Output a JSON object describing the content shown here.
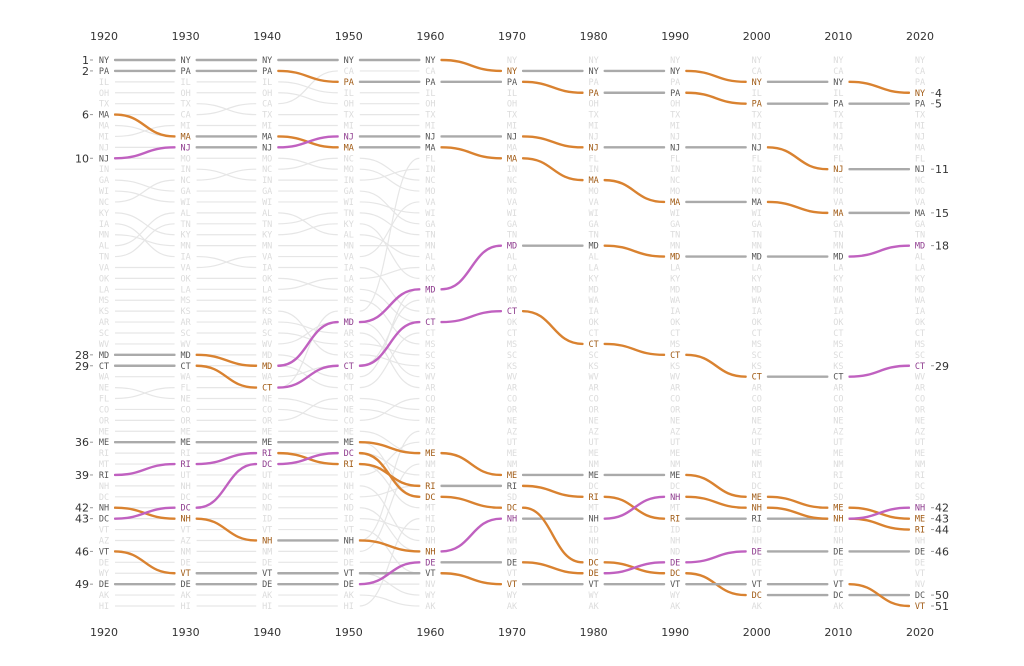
{
  "chart_data": {
    "type": "line",
    "title": "",
    "xlabel": "",
    "ylabel": "",
    "ylim": [
      1,
      51
    ],
    "x": [
      "1920",
      "1930",
      "1940",
      "1950",
      "1960",
      "1970",
      "1980",
      "1990",
      "2000",
      "2010",
      "2020"
    ],
    "colors": {
      "rise": "#c061c0",
      "fall": "#d98230",
      "flat": "#aaaaaa",
      "ghost": "#e6e6e6"
    },
    "series": [
      {
        "name": "NY",
        "values": [
          1,
          1,
          1,
          1,
          1,
          2,
          2,
          2,
          3,
          3,
          4
        ]
      },
      {
        "name": "PA",
        "values": [
          2,
          2,
          2,
          3,
          3,
          3,
          4,
          4,
          5,
          5,
          5
        ]
      },
      {
        "name": "MA",
        "values": [
          6,
          8,
          8,
          9,
          9,
          10,
          12,
          14,
          14,
          15,
          15
        ]
      },
      {
        "name": "NJ",
        "values": [
          10,
          9,
          9,
          8,
          8,
          8,
          9,
          9,
          9,
          11,
          11
        ]
      },
      {
        "name": "MD",
        "values": [
          28,
          28,
          29,
          25,
          22,
          18,
          18,
          19,
          19,
          19,
          18
        ]
      },
      {
        "name": "CT",
        "values": [
          29,
          29,
          31,
          29,
          25,
          24,
          27,
          28,
          30,
          30,
          29
        ]
      },
      {
        "name": "ME",
        "values": [
          36,
          36,
          36,
          36,
          37,
          39,
          39,
          39,
          41,
          42,
          43
        ]
      },
      {
        "name": "RI",
        "values": [
          39,
          38,
          37,
          38,
          40,
          40,
          41,
          43,
          43,
          43,
          44
        ]
      },
      {
        "name": "NH",
        "values": [
          42,
          43,
          45,
          45,
          46,
          43,
          43,
          41,
          42,
          43,
          42
        ]
      },
      {
        "name": "DC",
        "values": [
          43,
          42,
          38,
          37,
          41,
          42,
          47,
          48,
          50,
          50,
          50
        ]
      },
      {
        "name": "VT",
        "values": [
          46,
          48,
          48,
          48,
          48,
          49,
          49,
          49,
          49,
          49,
          51
        ]
      },
      {
        "name": "DE",
        "values": [
          49,
          49,
          49,
          49,
          47,
          47,
          48,
          47,
          46,
          46,
          46
        ]
      }
    ],
    "start_ranks": [
      "1",
      "2",
      "6",
      "10",
      "28",
      "29",
      "36",
      "39",
      "42",
      "43",
      "46",
      "49"
    ],
    "end_ranks": [
      "4",
      "5",
      "15",
      "11",
      "18",
      "29",
      "43",
      "44",
      "42",
      "50",
      "51",
      "46"
    ],
    "ghost_labels": [
      [
        "NY",
        "PA",
        "IL",
        "OH",
        "TX",
        "CA",
        "MA",
        "MI",
        "NJ",
        "MO",
        "IN",
        "GA",
        "WI",
        "NC",
        "KY",
        "IA",
        "MN",
        "AL",
        "TN",
        "VA",
        "OK",
        "LA",
        "MS",
        "KS",
        "AR",
        "SC",
        "WV",
        "MD",
        "CT",
        "WA",
        "NE",
        "FL",
        "CO",
        "OR",
        "ME",
        "SD",
        "RI",
        "MT",
        "UT",
        "NH",
        "DC",
        "ND",
        "ID",
        "VT",
        "AZ",
        "NM",
        "DE",
        "WY",
        "NV",
        "AK",
        "HI"
      ],
      [
        "NY",
        "PA",
        "IL",
        "OH",
        "TX",
        "CA",
        "MI",
        "MA",
        "NJ",
        "MO",
        "IN",
        "NC",
        "GA",
        "WI",
        "AL",
        "TN",
        "KY",
        "MN",
        "IA",
        "VA",
        "OK",
        "LA",
        "MS",
        "KS",
        "AR",
        "SC",
        "WV",
        "MD",
        "CT",
        "WA",
        "FL",
        "NE",
        "CO",
        "OR",
        "ME",
        "SD",
        "RI",
        "MT",
        "UT",
        "NH",
        "DC",
        "ND",
        "ID",
        "VT",
        "AZ",
        "NM",
        "DE",
        "WY",
        "NV",
        "AK",
        "HI"
      ],
      [
        "NY",
        "PA",
        "IL",
        "OH",
        "CA",
        "TX",
        "MI",
        "MA",
        "NJ",
        "MO",
        "NC",
        "IN",
        "GA",
        "WI",
        "AL",
        "TN",
        "KY",
        "MN",
        "VA",
        "IA",
        "OK",
        "LA",
        "MS",
        "KS",
        "AR",
        "SC",
        "WV",
        "MD",
        "CT",
        "WA",
        "FL",
        "NE",
        "CO",
        "OR",
        "ME",
        "SD",
        "RI",
        "MT",
        "UT",
        "NH",
        "DC",
        "ND",
        "ID",
        "VT",
        "AZ",
        "NM",
        "DE",
        "WY",
        "NV",
        "AK",
        "HI"
      ],
      [
        "NY",
        "CA",
        "PA",
        "IL",
        "OH",
        "TX",
        "MI",
        "NJ",
        "MA",
        "NC",
        "MO",
        "IN",
        "GA",
        "WI",
        "TN",
        "KY",
        "AL",
        "MN",
        "VA",
        "IA",
        "LA",
        "OK",
        "MS",
        "FL",
        "WV",
        "AR",
        "SC",
        "KS",
        "WA",
        "MD",
        "CT",
        "OR",
        "NE",
        "CO",
        "ME",
        "SD",
        "RI",
        "MT",
        "UT",
        "NH",
        "DC",
        "ND",
        "ID",
        "VT",
        "AZ",
        "NM",
        "DE",
        "WY",
        "NV",
        "AK",
        "HI"
      ],
      [
        "NY",
        "CA",
        "PA",
        "IL",
        "OH",
        "TX",
        "MI",
        "NJ",
        "MA",
        "FL",
        "IN",
        "NC",
        "MO",
        "VA",
        "WI",
        "GA",
        "TN",
        "MN",
        "AL",
        "LA",
        "KY",
        "MD",
        "WA",
        "IA",
        "OK",
        "CT",
        "MS",
        "SC",
        "KS",
        "WV",
        "AR",
        "CO",
        "OR",
        "NE",
        "AZ",
        "UT",
        "ME",
        "NM",
        "RI",
        "DC",
        "SD",
        "MT",
        "HI",
        "ID",
        "NH",
        "ND",
        "DE",
        "VT",
        "NV",
        "WY",
        "AK"
      ]
    ]
  }
}
